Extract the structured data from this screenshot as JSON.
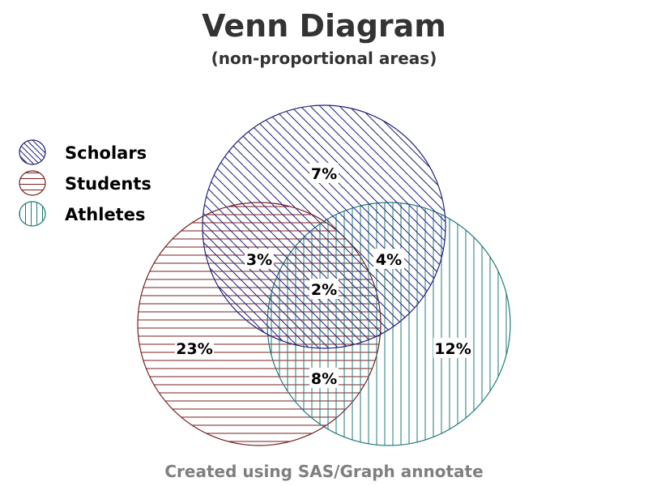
{
  "title": "Venn Diagram",
  "subtitle": "(non-proportional areas)",
  "footer": "Created using SAS/Graph annotate",
  "colors": {
    "scholars": "#1f1f7a",
    "students": "#7a1f1f",
    "athletes": "#1f7a7a"
  },
  "legend": [
    {
      "label": "Scholars",
      "pattern": "diagonal-hatch"
    },
    {
      "label": "Students",
      "pattern": "horizontal-hatch"
    },
    {
      "label": "Athletes",
      "pattern": "vertical-hatch"
    }
  ],
  "regions": {
    "scholars_only": "7%",
    "scholars_students": "3%",
    "scholars_athletes": "4%",
    "all_three": "2%",
    "students_only": "23%",
    "athletes_only": "12%",
    "students_athletes": "8%"
  }
}
